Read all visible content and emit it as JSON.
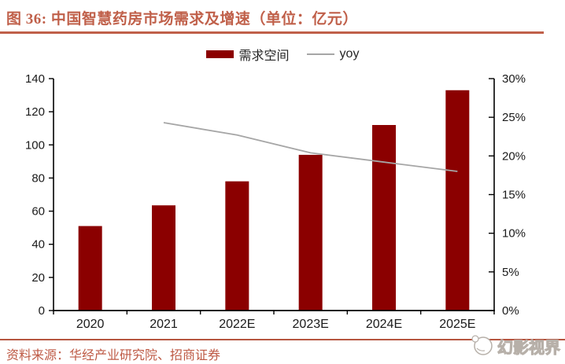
{
  "figure": {
    "title": "图 36:  中国智慧药房市场需求及增速（单位：亿元）",
    "source": "资料来源：华经产业研究院、招商证券",
    "watermark": "幻影视界"
  },
  "colors": {
    "bar": "#8B0000",
    "line": "#A6A6A6",
    "accent": "#C0604A",
    "axis": "#000000",
    "tick_text": "#1a1a1a"
  },
  "chart_data": {
    "type": "bar",
    "subtype": "bar-with-secondary-line",
    "title": "中国智慧药房市场需求及增速（单位：亿元）",
    "categories": [
      "2020",
      "2021",
      "2022E",
      "2023E",
      "2024E",
      "2025E"
    ],
    "series": [
      {
        "name": "需求空间",
        "chart": "bar",
        "axis": "left",
        "values": [
          51,
          63.5,
          78,
          94,
          112,
          133
        ]
      },
      {
        "name": "yoy",
        "chart": "line",
        "axis": "right",
        "values": [
          null,
          24.3,
          22.7,
          20.4,
          19.2,
          18.0
        ]
      }
    ],
    "left_axis": {
      "min": 0,
      "max": 140,
      "step": 20,
      "ticks": [
        "0",
        "20",
        "40",
        "60",
        "80",
        "100",
        "120",
        "140"
      ]
    },
    "right_axis": {
      "min": 0,
      "max": 30,
      "step": 5,
      "suffix": "%",
      "ticks": [
        "0%",
        "5%",
        "10%",
        "15%",
        "20%",
        "25%",
        "30%"
      ]
    },
    "grid": false,
    "legend_position": "top-center"
  }
}
